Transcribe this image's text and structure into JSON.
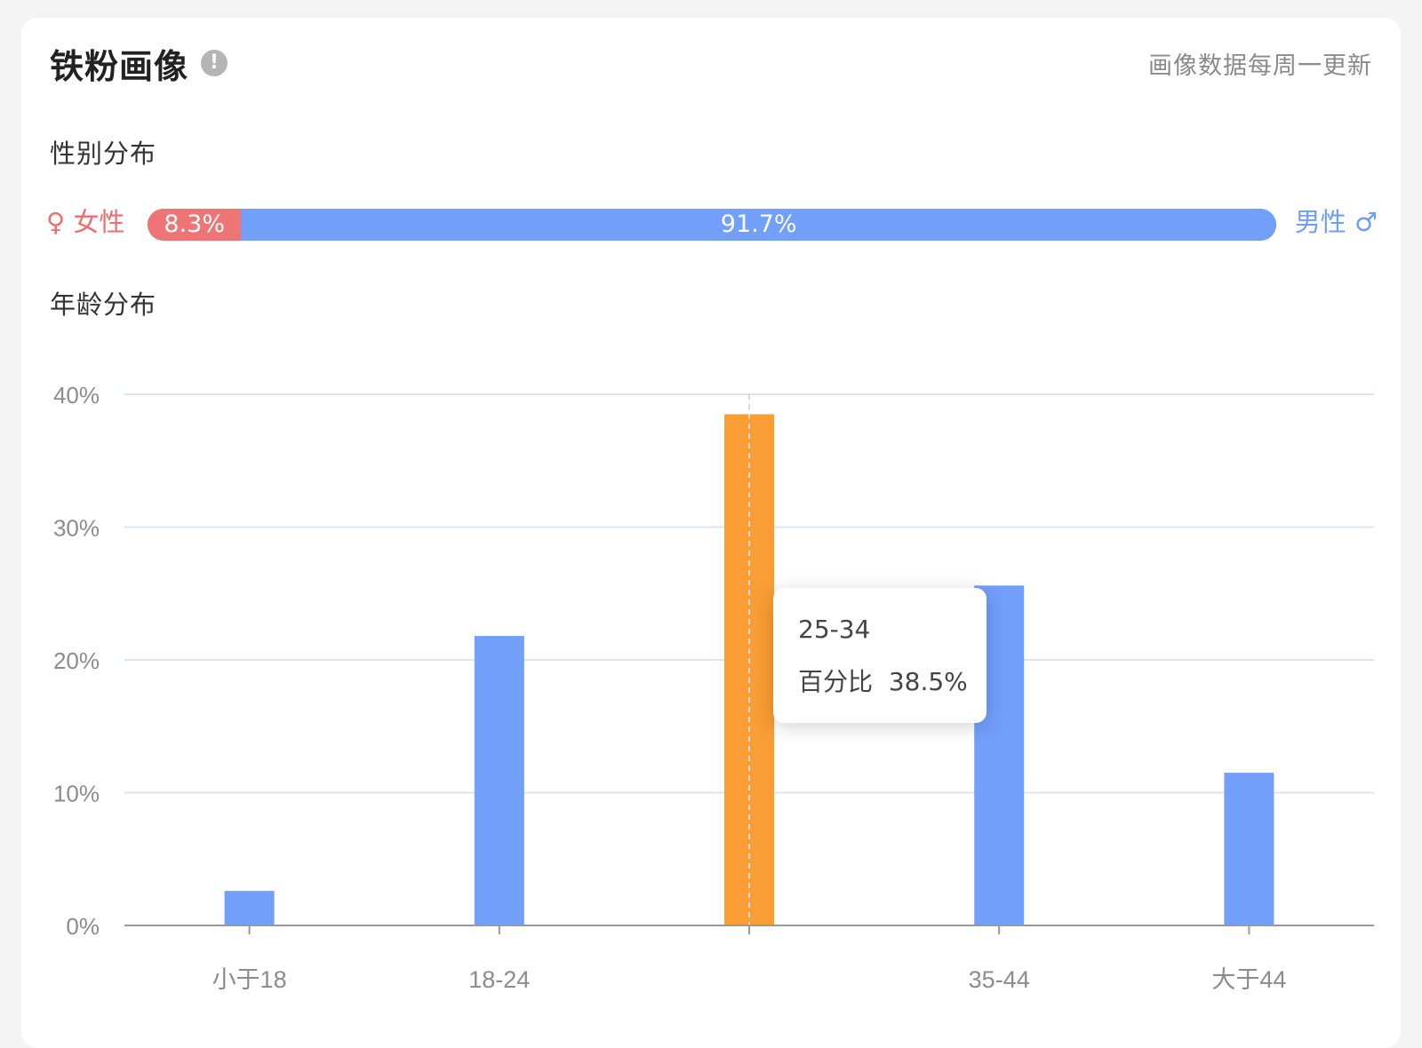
{
  "header": {
    "title": "铁粉画像",
    "info_icon": "exclamation-circle-icon",
    "update_note": "画像数据每周一更新"
  },
  "gender": {
    "section_label": "性别分布",
    "female_label": "♀ 女性",
    "male_label": "男性 ♂",
    "female_value": "8.3%",
    "male_value": "91.7%",
    "female_fraction": 0.083,
    "male_fraction": 0.917,
    "colors": {
      "female": "#ee7575",
      "male": "#729ffa"
    }
  },
  "age": {
    "section_label": "年龄分布"
  },
  "tooltip": {
    "category": "25-34",
    "metric_label": "百分比",
    "metric_value": "38.5%"
  },
  "chart_data": {
    "type": "bar",
    "categories": [
      "小于18",
      "18-24",
      "25-34",
      "35-44",
      "大于44"
    ],
    "visible_category_labels": [
      "小于18",
      "18-24",
      "",
      "35-44",
      "大于44"
    ],
    "values": [
      2.6,
      21.8,
      38.5,
      25.6,
      11.5
    ],
    "ylim": [
      0,
      40
    ],
    "y_ticks": [
      "0%",
      "10%",
      "20%",
      "30%",
      "40%"
    ],
    "grid": true,
    "highlighted_index": 2,
    "colors": {
      "bar": "#729ffa",
      "highlight": "#f99d34",
      "grid": "#dde6ef",
      "axis": "#999999",
      "tick_text": "#8c8c8c"
    }
  }
}
